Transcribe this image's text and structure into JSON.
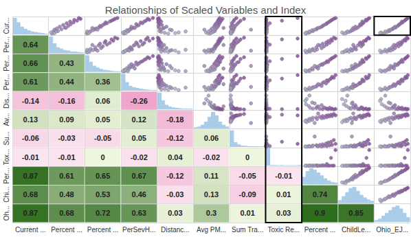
{
  "chart_data": {
    "type": "scatter_matrix",
    "title": "Relationships of Scaled Variables and Index",
    "x_labels": [
      "Current ...",
      "Percent ...",
      "Percent ...",
      "PerSevH...",
      "Distanc...",
      "Avg PM...",
      "Sum Tra...",
      "Toxic Re...",
      "Percent ...",
      "ChildLe...",
      "Ohio_EJ..."
    ],
    "y_labels": [
      "Cur...",
      "Per...",
      "Per...",
      "Per...",
      "Dis...",
      "Av...",
      "Su...",
      "Tox...",
      "Per...",
      "Chi...",
      "Oh..."
    ],
    "correlations": [
      [],
      [
        0.64
      ],
      [
        0.66,
        0.43
      ],
      [
        0.61,
        0.44,
        0.36
      ],
      [
        -0.14,
        -0.16,
        0.06,
        -0.26
      ],
      [
        0.13,
        0.09,
        0.05,
        0.12,
        -0.18
      ],
      [
        -0.06,
        -0.03,
        -0.05,
        0.05,
        -0.12,
        0.06
      ],
      [
        -0.01,
        -0.01,
        0,
        -0.02,
        0.04,
        -0.02,
        0
      ],
      [
        0.87,
        0.61,
        0.65,
        0.67,
        -0.12,
        0.11,
        -0.05,
        -0.01
      ],
      [
        0.68,
        0.48,
        0.53,
        0.46,
        -0.03,
        0.13,
        -0.09,
        0.01,
        0.74
      ],
      [
        0.87,
        0.68,
        0.72,
        0.63,
        0.03,
        0.3,
        0.01,
        0.03,
        0.9,
        0.85
      ]
    ],
    "records": [
      [
        0.05,
        0.08,
        0.04,
        0.06,
        0.3,
        0.45,
        0.02,
        0.0,
        0.1,
        0.15,
        0.2
      ],
      [
        0.1,
        0.12,
        0.08,
        0.1,
        0.2,
        0.5,
        0.05,
        0.0,
        0.18,
        0.22,
        0.28
      ],
      [
        0.15,
        0.1,
        0.12,
        0.08,
        0.1,
        0.55,
        0.03,
        0.01,
        0.22,
        0.3,
        0.35
      ],
      [
        0.2,
        0.25,
        0.15,
        0.2,
        0.05,
        0.6,
        0.08,
        0.0,
        0.3,
        0.35,
        0.42
      ],
      [
        0.25,
        0.18,
        0.22,
        0.15,
        0.4,
        0.48,
        0.04,
        0.0,
        0.28,
        0.4,
        0.4
      ],
      [
        0.3,
        0.35,
        0.28,
        0.25,
        0.08,
        0.62,
        0.1,
        0.02,
        0.4,
        0.45,
        0.5
      ],
      [
        0.35,
        0.22,
        0.3,
        0.3,
        0.15,
        0.52,
        0.06,
        0.0,
        0.42,
        0.5,
        0.52
      ],
      [
        0.4,
        0.45,
        0.38,
        0.35,
        0.03,
        0.66,
        0.12,
        0.0,
        0.5,
        0.55,
        0.6
      ],
      [
        0.45,
        0.3,
        0.45,
        0.28,
        0.25,
        0.58,
        0.02,
        0.0,
        0.55,
        0.48,
        0.58
      ],
      [
        0.5,
        0.55,
        0.42,
        0.45,
        0.02,
        0.7,
        0.15,
        0.03,
        0.58,
        0.6,
        0.66
      ],
      [
        0.55,
        0.4,
        0.5,
        0.5,
        0.12,
        0.6,
        0.07,
        0.0,
        0.62,
        0.65,
        0.68
      ],
      [
        0.6,
        0.62,
        0.55,
        0.42,
        0.06,
        0.72,
        0.2,
        0.0,
        0.68,
        0.62,
        0.72
      ],
      [
        0.65,
        0.5,
        0.62,
        0.6,
        0.04,
        0.64,
        0.05,
        0.1,
        0.7,
        0.7,
        0.75
      ],
      [
        0.7,
        0.7,
        0.58,
        0.55,
        0.01,
        0.75,
        0.25,
        0.0,
        0.74,
        0.72,
        0.8
      ],
      [
        0.75,
        0.6,
        0.7,
        0.65,
        0.1,
        0.68,
        0.09,
        0.0,
        0.78,
        0.68,
        0.78
      ],
      [
        0.8,
        0.8,
        0.75,
        0.7,
        0.02,
        0.78,
        0.3,
        0.45,
        0.82,
        0.8,
        0.86
      ],
      [
        0.85,
        0.72,
        0.8,
        0.8,
        0.05,
        0.7,
        0.12,
        0.0,
        0.85,
        0.78,
        0.88
      ],
      [
        0.9,
        0.9,
        0.85,
        0.75,
        0.0,
        0.82,
        0.4,
        0.0,
        0.9,
        0.85,
        0.92
      ],
      [
        0.95,
        0.85,
        0.92,
        0.9,
        0.03,
        0.74,
        0.18,
        0.9,
        0.95,
        0.88,
        0.95
      ],
      [
        0.12,
        0.05,
        0.06,
        0.04,
        0.6,
        0.35,
        0.01,
        0.0,
        0.12,
        0.1,
        0.18
      ],
      [
        0.08,
        0.15,
        0.1,
        0.12,
        0.5,
        0.4,
        0.03,
        0.0,
        0.08,
        0.2,
        0.15
      ],
      [
        0.18,
        0.2,
        0.05,
        0.18,
        0.8,
        0.42,
        0.02,
        0.0,
        0.2,
        0.25,
        0.3
      ],
      [
        0.28,
        0.15,
        0.35,
        0.22,
        0.35,
        0.3,
        0.6,
        0.0,
        0.35,
        0.38,
        0.45
      ],
      [
        0.38,
        0.48,
        0.2,
        0.38,
        0.18,
        0.85,
        0.03,
        0.0,
        0.45,
        0.42,
        0.55
      ]
    ],
    "bins": [
      0,
      0.1,
      0.2,
      0.3,
      0.4,
      0.5,
      0.6,
      0.7,
      0.8,
      0.9,
      1
    ],
    "histograms": [
      {
        "counts": [
          30,
          22,
          14,
          10,
          7,
          5,
          4,
          3,
          2,
          1
        ],
        "ylim": [
          0,
          32
        ]
      },
      {
        "counts": [
          34,
          20,
          12,
          9,
          6,
          5,
          3,
          3,
          2,
          1
        ],
        "ylim": [
          0,
          36
        ]
      },
      {
        "counts": [
          36,
          22,
          13,
          9,
          6,
          4,
          3,
          2,
          1,
          1
        ],
        "ylim": [
          0,
          38
        ]
      },
      {
        "counts": [
          40,
          20,
          11,
          8,
          6,
          4,
          3,
          2,
          1,
          1
        ],
        "ylim": [
          0,
          42
        ]
      },
      {
        "counts": [
          38,
          20,
          10,
          6,
          4,
          3,
          2,
          1,
          1,
          1
        ],
        "ylim": [
          0,
          40
        ]
      },
      {
        "counts": [
          1,
          2,
          5,
          10,
          18,
          26,
          20,
          10,
          5,
          2
        ],
        "ylim": [
          0,
          28
        ]
      },
      {
        "counts": [
          45,
          12,
          6,
          3,
          2,
          1,
          1,
          1,
          0,
          1
        ],
        "ylim": [
          0,
          48
        ]
      },
      {
        "counts": [
          60,
          2,
          1,
          0,
          1,
          0,
          0,
          0,
          0,
          1
        ],
        "ylim": [
          0,
          62
        ]
      },
      {
        "counts": [
          10,
          18,
          22,
          20,
          16,
          12,
          8,
          5,
          3,
          2
        ],
        "ylim": [
          0,
          24
        ]
      },
      {
        "counts": [
          4,
          10,
          16,
          22,
          24,
          18,
          12,
          8,
          5,
          3
        ],
        "ylim": [
          0,
          26
        ]
      },
      {
        "counts": [
          2,
          4,
          8,
          12,
          16,
          20,
          22,
          18,
          12,
          6
        ],
        "ylim": [
          0,
          24
        ]
      }
    ],
    "xlim": [
      0,
      1
    ],
    "ylim": [
      0,
      1
    ],
    "tick_labels": false,
    "data_labels": true
  }
}
